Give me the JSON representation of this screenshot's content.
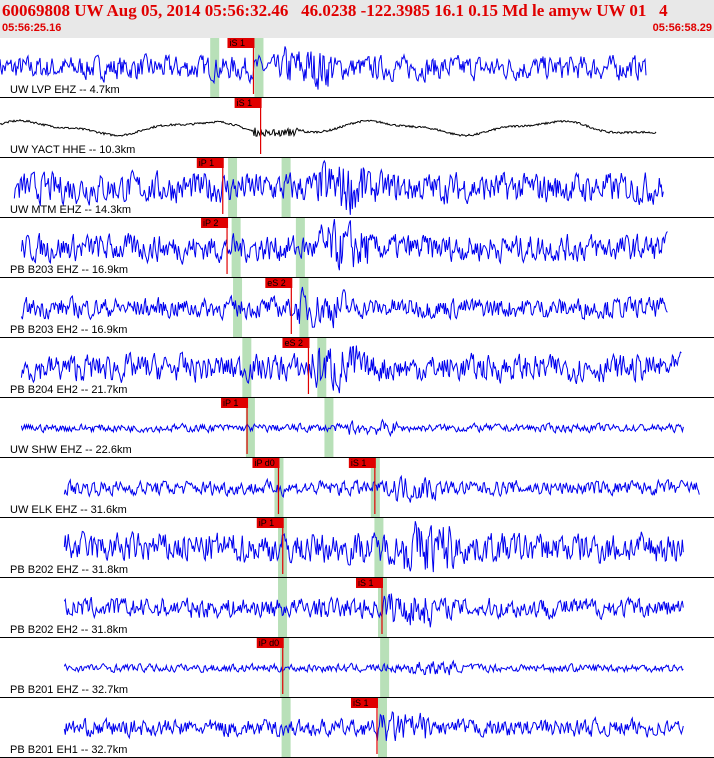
{
  "header": {
    "title": "60069808 UW Aug 05, 2014 05:56:32.46   46.0238 -122.3985 16.1 0.15 Md le amyw UW 01   4",
    "start_time": "05:56:25.16",
    "end_time": "05:56:58.29"
  },
  "colors": {
    "trace_default": "#0000ee",
    "trace_alt": "#000000",
    "pick": "#e00000",
    "window": "#b8e0b8",
    "header_bg": "#e8e8e8",
    "header_text": "#e00000"
  },
  "traces": [
    {
      "label": "UW LVP EHZ -- 4.7km",
      "color": "#0000ee",
      "start": 0.0,
      "end": 0.905,
      "amp": 0.35,
      "lowfreq": false,
      "picks": [
        {
          "label": "iS 1",
          "pos": 0.355
        }
      ],
      "windows": [
        0.3,
        0.362
      ],
      "arrival": 0.41
    },
    {
      "label": "UW YACT HHE -- 10.3km",
      "color": "#000000",
      "start": 0.0,
      "end": 0.92,
      "amp": 0.25,
      "lowfreq": true,
      "picks": [
        {
          "label": "iS 1",
          "pos": 0.365
        }
      ],
      "windows": [],
      "arrival": 0.39
    },
    {
      "label": "UW MTM EHZ -- 14.3km",
      "color": "#0000ee",
      "start": 0.02,
      "end": 0.93,
      "amp": 0.45,
      "lowfreq": false,
      "picks": [
        {
          "label": "iP 1",
          "pos": 0.312
        }
      ],
      "windows": [
        0.325,
        0.4
      ],
      "arrival": 0.46
    },
    {
      "label": "PB B203 EHZ -- 16.9km",
      "color": "#0000ee",
      "start": 0.03,
      "end": 0.935,
      "amp": 0.4,
      "lowfreq": false,
      "picks": [
        {
          "label": "iP 2",
          "pos": 0.318
        }
      ],
      "windows": [
        0.33,
        0.42
      ],
      "arrival": 0.46
    },
    {
      "label": "PB B203 EH2 -- 16.9km",
      "color": "#0000ee",
      "start": 0.03,
      "end": 0.935,
      "amp": 0.3,
      "lowfreq": false,
      "picks": [
        {
          "label": "eS 2",
          "pos": 0.408
        }
      ],
      "windows": [
        0.332,
        0.425
      ],
      "arrival": 0.43
    },
    {
      "label": "PB B204 EH2 -- 21.7km",
      "color": "#0000ee",
      "start": 0.03,
      "end": 0.955,
      "amp": 0.4,
      "lowfreq": false,
      "picks": [
        {
          "label": "eS 2",
          "pos": 0.432
        }
      ],
      "windows": [
        0.345,
        0.45
      ],
      "arrival": 0.45
    },
    {
      "label": "UW SHW EHZ -- 22.6km",
      "color": "#0000ee",
      "start": 0.03,
      "end": 0.958,
      "amp": 0.12,
      "lowfreq": false,
      "picks": [
        {
          "label": "iP 1",
          "pos": 0.346
        }
      ],
      "windows": [
        0.35,
        0.46
      ],
      "arrival": 0.5
    },
    {
      "label": "UW ELK EHZ -- 31.6km",
      "color": "#0000ee",
      "start": 0.09,
      "end": 0.98,
      "amp": 0.22,
      "lowfreq": false,
      "picks": [
        {
          "label": "iP d0",
          "pos": 0.39
        },
        {
          "label": "iS 1",
          "pos": 0.525
        }
      ],
      "windows": [
        0.39,
        0.525
      ],
      "arrival": 0.56
    },
    {
      "label": "PB B202 EHZ -- 31.8km",
      "color": "#0000ee",
      "start": 0.09,
      "end": 0.958,
      "amp": 0.45,
      "lowfreq": false,
      "picks": [
        {
          "label": "iP 1",
          "pos": 0.396
        }
      ],
      "windows": [
        0.395,
        0.53
      ],
      "arrival": 0.58
    },
    {
      "label": "PB B202 EH2 -- 31.8km",
      "color": "#0000ee",
      "start": 0.09,
      "end": 0.958,
      "amp": 0.3,
      "lowfreq": false,
      "picks": [
        {
          "label": "iS 1",
          "pos": 0.535
        }
      ],
      "windows": [
        0.395,
        0.535
      ],
      "arrival": 0.55
    },
    {
      "label": "PB B201 EHZ -- 32.7km",
      "color": "#0000ee",
      "start": 0.09,
      "end": 0.958,
      "amp": 0.12,
      "lowfreq": false,
      "picks": [
        {
          "label": "iP d0",
          "pos": 0.396
        }
      ],
      "windows": [
        0.398,
        0.538
      ],
      "arrival": 0.58
    },
    {
      "label": "PB B201 EH1 -- 32.7km",
      "color": "#0000ee",
      "start": 0.09,
      "end": 0.958,
      "amp": 0.25,
      "lowfreq": false,
      "picks": [
        {
          "label": "iS 1",
          "pos": 0.528
        }
      ],
      "windows": [
        0.4,
        0.535
      ],
      "arrival": 0.54
    }
  ]
}
